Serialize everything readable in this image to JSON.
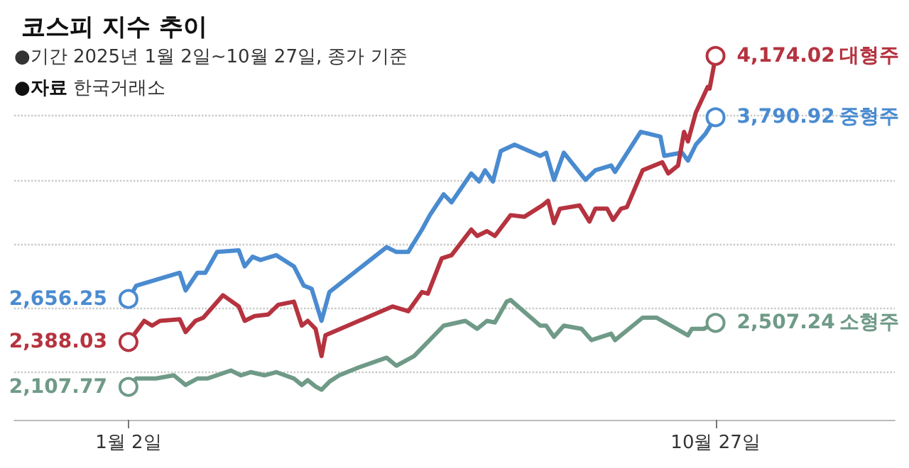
{
  "chart_data": {
    "type": "line",
    "title": "코스피 지수 추이",
    "subtitle": "●기간 2025년 1월 2일~10월 27일, 종가 기준",
    "annotations": [
      "●자료 한국거래소"
    ],
    "series": [
      {
        "name": "대형주",
        "color": "#b5333f",
        "x": [
          "2025-01-02",
          "2025-01-10",
          "2025-01-14",
          "2025-01-18",
          "2025-01-28",
          "2025-01-31",
          "2025-02-05",
          "2025-02-09",
          "2025-02-19",
          "2025-02-27",
          "2025-03-02",
          "2025-03-07",
          "2025-03-14",
          "2025-03-19",
          "2025-03-27",
          "2025-03-31",
          "2025-04-03",
          "2025-04-07",
          "2025-04-10",
          "2025-04-12",
          "2025-05-16",
          "2025-05-24",
          "2025-05-31",
          "2025-06-03",
          "2025-06-10",
          "2025-06-15",
          "2025-06-25",
          "2025-06-28",
          "2025-07-03",
          "2025-07-07",
          "2025-07-15",
          "2025-07-22",
          "2025-07-31",
          "2025-08-03",
          "2025-08-06",
          "2025-08-09",
          "2025-08-19",
          "2025-08-24",
          "2025-08-27",
          "2025-09-02",
          "2025-09-05",
          "2025-09-09",
          "2025-09-12",
          "2025-09-20",
          "2025-09-30",
          "2025-10-03",
          "2025-10-08",
          "2025-10-11",
          "2025-10-13",
          "2025-10-17",
          "2025-10-23",
          "2025-10-24",
          "2025-10-26",
          "2025-10-27"
        ],
        "values": [
          2388.03,
          2520,
          2490,
          2520,
          2530,
          2450,
          2520,
          2540,
          2680,
          2610,
          2520,
          2550,
          2560,
          2620,
          2640,
          2490,
          2520,
          2470,
          2300,
          2430,
          2610,
          2580,
          2700,
          2690,
          2910,
          2930,
          3090,
          3050,
          3080,
          3050,
          3180,
          3170,
          3240,
          3270,
          3130,
          3220,
          3240,
          3140,
          3220,
          3220,
          3150,
          3220,
          3230,
          3460,
          3510,
          3440,
          3490,
          3700,
          3640,
          3820,
          3980,
          3970,
          4100,
          4174.02
        ],
        "value_labels": [
          "2,388.03",
          null,
          null,
          null,
          null,
          null,
          null,
          null,
          null,
          null,
          null,
          null,
          null,
          null,
          null,
          null,
          null,
          null,
          null,
          null,
          null,
          null,
          null,
          null,
          null,
          null,
          null,
          null,
          null,
          null,
          null,
          null,
          null,
          null,
          null,
          null,
          null,
          null,
          null,
          null,
          null,
          null,
          null,
          null,
          null,
          null,
          null,
          null,
          null,
          null,
          null,
          null,
          null,
          "4,174.02"
        ]
      },
      {
        "name": "중형주",
        "color": "#4a8bd0",
        "x": [
          "2025-01-02",
          "2025-01-06",
          "2025-01-28",
          "2025-01-31",
          "2025-02-06",
          "2025-02-10",
          "2025-02-16",
          "2025-02-27",
          "2025-03-02",
          "2025-03-06",
          "2025-03-10",
          "2025-03-18",
          "2025-03-27",
          "2025-04-01",
          "2025-04-05",
          "2025-04-10",
          "2025-04-14",
          "2025-05-13",
          "2025-05-18",
          "2025-05-24",
          "2025-05-31",
          "2025-06-04",
          "2025-06-11",
          "2025-06-15",
          "2025-06-25",
          "2025-06-29",
          "2025-07-02",
          "2025-07-06",
          "2025-07-10",
          "2025-07-17",
          "2025-07-30",
          "2025-08-02",
          "2025-08-06",
          "2025-08-11",
          "2025-08-22",
          "2025-08-27",
          "2025-09-04",
          "2025-09-06",
          "2025-09-19",
          "2025-09-29",
          "2025-10-01",
          "2025-10-10",
          "2025-10-13",
          "2025-10-17",
          "2025-10-22",
          "2025-10-27"
        ],
        "values": [
          2656.25,
          2740,
          2820,
          2710,
          2820,
          2820,
          2950,
          2960,
          2860,
          2920,
          2900,
          2930,
          2860,
          2740,
          2720,
          2520,
          2700,
          2980,
          2950,
          2950,
          3090,
          3180,
          3310,
          3260,
          3440,
          3390,
          3460,
          3390,
          3580,
          3620,
          3550,
          3570,
          3400,
          3570,
          3400,
          3460,
          3490,
          3450,
          3700,
          3670,
          3550,
          3570,
          3520,
          3620,
          3690,
          3790.92
        ],
        "value_labels": [
          "2,656.25",
          null,
          null,
          null,
          null,
          null,
          null,
          null,
          null,
          null,
          null,
          null,
          null,
          null,
          null,
          null,
          null,
          null,
          null,
          null,
          null,
          null,
          null,
          null,
          null,
          null,
          null,
          null,
          null,
          null,
          null,
          null,
          null,
          null,
          null,
          null,
          null,
          null,
          null,
          null,
          null,
          null,
          null,
          null,
          null,
          "3,790.92"
        ]
      },
      {
        "name": "소형주",
        "color": "#6f9a87",
        "x": [
          "2025-01-02",
          "2025-01-06",
          "2025-01-16",
          "2025-01-25",
          "2025-01-31",
          "2025-02-06",
          "2025-02-11",
          "2025-02-23",
          "2025-02-28",
          "2025-03-05",
          "2025-03-12",
          "2025-03-18",
          "2025-03-27",
          "2025-03-31",
          "2025-04-03",
          "2025-04-07",
          "2025-04-10",
          "2025-04-14",
          "2025-04-19",
          "2025-04-29",
          "2025-05-13",
          "2025-05-18",
          "2025-05-27",
          "2025-06-11",
          "2025-06-22",
          "2025-06-28",
          "2025-07-03",
          "2025-07-07",
          "2025-07-13",
          "2025-07-15",
          "2025-07-30",
          "2025-08-02",
          "2025-08-06",
          "2025-08-11",
          "2025-08-20",
          "2025-08-25",
          "2025-09-04",
          "2025-09-06",
          "2025-09-20",
          "2025-09-27",
          "2025-10-13",
          "2025-10-15",
          "2025-10-21",
          "2025-10-27"
        ],
        "values": [
          2107.77,
          2160,
          2160,
          2180,
          2120,
          2160,
          2160,
          2210,
          2180,
          2200,
          2180,
          2200,
          2160,
          2120,
          2150,
          2110,
          2090,
          2140,
          2180,
          2230,
          2290,
          2240,
          2300,
          2490,
          2520,
          2470,
          2520,
          2510,
          2640,
          2650,
          2490,
          2490,
          2420,
          2490,
          2470,
          2400,
          2440,
          2400,
          2540,
          2540,
          2430,
          2470,
          2470,
          2507.24
        ],
        "value_labels": [
          "2,107.77",
          null,
          null,
          null,
          null,
          null,
          null,
          null,
          null,
          null,
          null,
          null,
          null,
          null,
          null,
          null,
          null,
          null,
          null,
          null,
          null,
          null,
          null,
          null,
          null,
          null,
          null,
          null,
          null,
          null,
          null,
          null,
          null,
          null,
          null,
          null,
          null,
          null,
          null,
          null,
          null,
          null,
          null,
          "2,507.24"
        ]
      }
    ],
    "xlim": [
      "2024-11-05",
      "2026-01-26"
    ],
    "xticks": [
      {
        "value": "2025-01-02",
        "label": "1월 2일"
      },
      {
        "value": "2025-10-27",
        "label": "10월 27일"
      }
    ],
    "yticks": [
      {
        "value": 2200,
        "label": null
      },
      {
        "value": 2600,
        "label": null
      },
      {
        "value": 3000,
        "label": null
      },
      {
        "value": 3400,
        "label": null
      },
      {
        "value": 3800,
        "label": null
      }
    ],
    "tick_labels": "x",
    "grid": "y",
    "legend": false,
    "line_style": "solid"
  }
}
